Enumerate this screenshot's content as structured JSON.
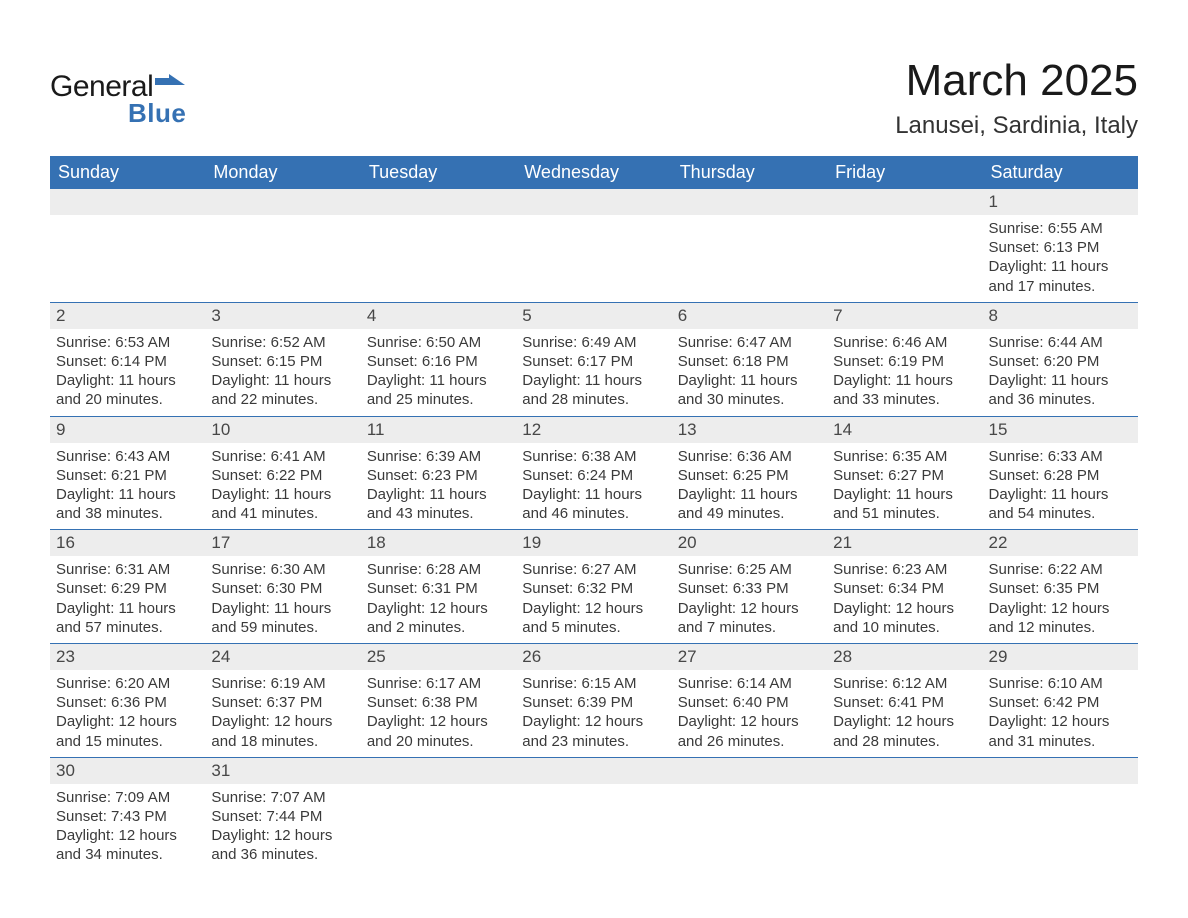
{
  "brand": {
    "general": "General",
    "blue": "Blue",
    "flag_color": "#3571b3"
  },
  "header": {
    "month_title": "March 2025",
    "location": "Lanusei, Sardinia, Italy"
  },
  "columns": [
    "Sunday",
    "Monday",
    "Tuesday",
    "Wednesday",
    "Thursday",
    "Friday",
    "Saturday"
  ],
  "colors": {
    "header_bg": "#3571b3",
    "header_text": "#ffffff",
    "daynum_bg": "#ededed",
    "daynum_text": "#474747",
    "detail_text": "#3a3a3a",
    "row_divider": "#3571b3",
    "page_bg": "#ffffff"
  },
  "typography": {
    "month_title_fontsize": 44,
    "location_fontsize": 24,
    "header_fontsize": 18,
    "daynum_fontsize": 17,
    "detail_fontsize": 15,
    "font_family": "Arial"
  },
  "weeks": [
    {
      "nums": [
        "",
        "",
        "",
        "",
        "",
        "",
        "1"
      ],
      "details": [
        null,
        null,
        null,
        null,
        null,
        null,
        {
          "sunrise": "Sunrise: 6:55 AM",
          "sunset": "Sunset: 6:13 PM",
          "daylight": "Daylight: 11 hours and 17 minutes."
        }
      ]
    },
    {
      "nums": [
        "2",
        "3",
        "4",
        "5",
        "6",
        "7",
        "8"
      ],
      "details": [
        {
          "sunrise": "Sunrise: 6:53 AM",
          "sunset": "Sunset: 6:14 PM",
          "daylight": "Daylight: 11 hours and 20 minutes."
        },
        {
          "sunrise": "Sunrise: 6:52 AM",
          "sunset": "Sunset: 6:15 PM",
          "daylight": "Daylight: 11 hours and 22 minutes."
        },
        {
          "sunrise": "Sunrise: 6:50 AM",
          "sunset": "Sunset: 6:16 PM",
          "daylight": "Daylight: 11 hours and 25 minutes."
        },
        {
          "sunrise": "Sunrise: 6:49 AM",
          "sunset": "Sunset: 6:17 PM",
          "daylight": "Daylight: 11 hours and 28 minutes."
        },
        {
          "sunrise": "Sunrise: 6:47 AM",
          "sunset": "Sunset: 6:18 PM",
          "daylight": "Daylight: 11 hours and 30 minutes."
        },
        {
          "sunrise": "Sunrise: 6:46 AM",
          "sunset": "Sunset: 6:19 PM",
          "daylight": "Daylight: 11 hours and 33 minutes."
        },
        {
          "sunrise": "Sunrise: 6:44 AM",
          "sunset": "Sunset: 6:20 PM",
          "daylight": "Daylight: 11 hours and 36 minutes."
        }
      ]
    },
    {
      "nums": [
        "9",
        "10",
        "11",
        "12",
        "13",
        "14",
        "15"
      ],
      "details": [
        {
          "sunrise": "Sunrise: 6:43 AM",
          "sunset": "Sunset: 6:21 PM",
          "daylight": "Daylight: 11 hours and 38 minutes."
        },
        {
          "sunrise": "Sunrise: 6:41 AM",
          "sunset": "Sunset: 6:22 PM",
          "daylight": "Daylight: 11 hours and 41 minutes."
        },
        {
          "sunrise": "Sunrise: 6:39 AM",
          "sunset": "Sunset: 6:23 PM",
          "daylight": "Daylight: 11 hours and 43 minutes."
        },
        {
          "sunrise": "Sunrise: 6:38 AM",
          "sunset": "Sunset: 6:24 PM",
          "daylight": "Daylight: 11 hours and 46 minutes."
        },
        {
          "sunrise": "Sunrise: 6:36 AM",
          "sunset": "Sunset: 6:25 PM",
          "daylight": "Daylight: 11 hours and 49 minutes."
        },
        {
          "sunrise": "Sunrise: 6:35 AM",
          "sunset": "Sunset: 6:27 PM",
          "daylight": "Daylight: 11 hours and 51 minutes."
        },
        {
          "sunrise": "Sunrise: 6:33 AM",
          "sunset": "Sunset: 6:28 PM",
          "daylight": "Daylight: 11 hours and 54 minutes."
        }
      ]
    },
    {
      "nums": [
        "16",
        "17",
        "18",
        "19",
        "20",
        "21",
        "22"
      ],
      "details": [
        {
          "sunrise": "Sunrise: 6:31 AM",
          "sunset": "Sunset: 6:29 PM",
          "daylight": "Daylight: 11 hours and 57 minutes."
        },
        {
          "sunrise": "Sunrise: 6:30 AM",
          "sunset": "Sunset: 6:30 PM",
          "daylight": "Daylight: 11 hours and 59 minutes."
        },
        {
          "sunrise": "Sunrise: 6:28 AM",
          "sunset": "Sunset: 6:31 PM",
          "daylight": "Daylight: 12 hours and 2 minutes."
        },
        {
          "sunrise": "Sunrise: 6:27 AM",
          "sunset": "Sunset: 6:32 PM",
          "daylight": "Daylight: 12 hours and 5 minutes."
        },
        {
          "sunrise": "Sunrise: 6:25 AM",
          "sunset": "Sunset: 6:33 PM",
          "daylight": "Daylight: 12 hours and 7 minutes."
        },
        {
          "sunrise": "Sunrise: 6:23 AM",
          "sunset": "Sunset: 6:34 PM",
          "daylight": "Daylight: 12 hours and 10 minutes."
        },
        {
          "sunrise": "Sunrise: 6:22 AM",
          "sunset": "Sunset: 6:35 PM",
          "daylight": "Daylight: 12 hours and 12 minutes."
        }
      ]
    },
    {
      "nums": [
        "23",
        "24",
        "25",
        "26",
        "27",
        "28",
        "29"
      ],
      "details": [
        {
          "sunrise": "Sunrise: 6:20 AM",
          "sunset": "Sunset: 6:36 PM",
          "daylight": "Daylight: 12 hours and 15 minutes."
        },
        {
          "sunrise": "Sunrise: 6:19 AM",
          "sunset": "Sunset: 6:37 PM",
          "daylight": "Daylight: 12 hours and 18 minutes."
        },
        {
          "sunrise": "Sunrise: 6:17 AM",
          "sunset": "Sunset: 6:38 PM",
          "daylight": "Daylight: 12 hours and 20 minutes."
        },
        {
          "sunrise": "Sunrise: 6:15 AM",
          "sunset": "Sunset: 6:39 PM",
          "daylight": "Daylight: 12 hours and 23 minutes."
        },
        {
          "sunrise": "Sunrise: 6:14 AM",
          "sunset": "Sunset: 6:40 PM",
          "daylight": "Daylight: 12 hours and 26 minutes."
        },
        {
          "sunrise": "Sunrise: 6:12 AM",
          "sunset": "Sunset: 6:41 PM",
          "daylight": "Daylight: 12 hours and 28 minutes."
        },
        {
          "sunrise": "Sunrise: 6:10 AM",
          "sunset": "Sunset: 6:42 PM",
          "daylight": "Daylight: 12 hours and 31 minutes."
        }
      ]
    },
    {
      "nums": [
        "30",
        "31",
        "",
        "",
        "",
        "",
        ""
      ],
      "details": [
        {
          "sunrise": "Sunrise: 7:09 AM",
          "sunset": "Sunset: 7:43 PM",
          "daylight": "Daylight: 12 hours and 34 minutes."
        },
        {
          "sunrise": "Sunrise: 7:07 AM",
          "sunset": "Sunset: 7:44 PM",
          "daylight": "Daylight: 12 hours and 36 minutes."
        },
        null,
        null,
        null,
        null,
        null
      ]
    }
  ]
}
